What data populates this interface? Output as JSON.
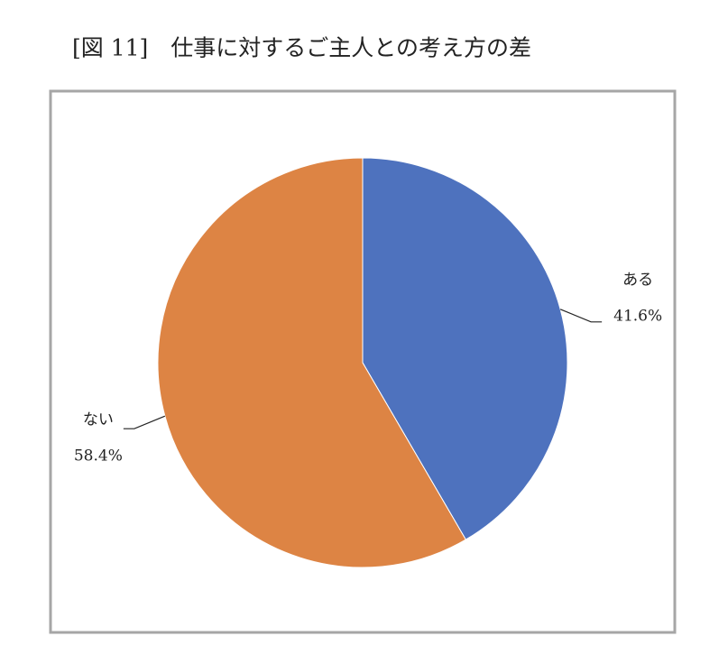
{
  "chart_data": {
    "type": "pie",
    "title": "[図 11]　仕事に対するご主人との考え方の差",
    "categories": [
      "ある",
      "ない"
    ],
    "values": [
      41.6,
      58.4
    ],
    "value_labels": [
      "41.6%",
      "58.4%"
    ],
    "colors": [
      "#4e72be",
      "#dd8444"
    ]
  }
}
